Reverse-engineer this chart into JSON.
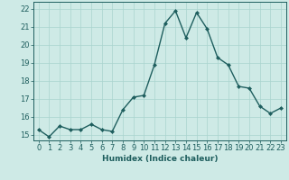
{
  "x": [
    0,
    1,
    2,
    3,
    4,
    5,
    6,
    7,
    8,
    9,
    10,
    11,
    12,
    13,
    14,
    15,
    16,
    17,
    18,
    19,
    20,
    21,
    22,
    23
  ],
  "y": [
    15.3,
    14.9,
    15.5,
    15.3,
    15.3,
    15.6,
    15.3,
    15.2,
    16.4,
    17.1,
    17.2,
    18.9,
    21.2,
    21.9,
    20.4,
    21.8,
    20.9,
    19.3,
    18.9,
    17.7,
    17.6,
    16.6,
    16.2,
    16.5
  ],
  "xlabel": "Humidex (Indice chaleur)",
  "ylabel_ticks": [
    15,
    16,
    17,
    18,
    19,
    20,
    21,
    22
  ],
  "xlim": [
    -0.5,
    23.5
  ],
  "ylim": [
    14.7,
    22.4
  ],
  "bg_color": "#ceeae6",
  "line_color": "#1e5e5e",
  "grid_color": "#aad4ce",
  "marker": "D",
  "markersize": 2.0,
  "linewidth": 1.0,
  "xlabel_fontsize": 6.5,
  "tick_fontsize": 6.0
}
